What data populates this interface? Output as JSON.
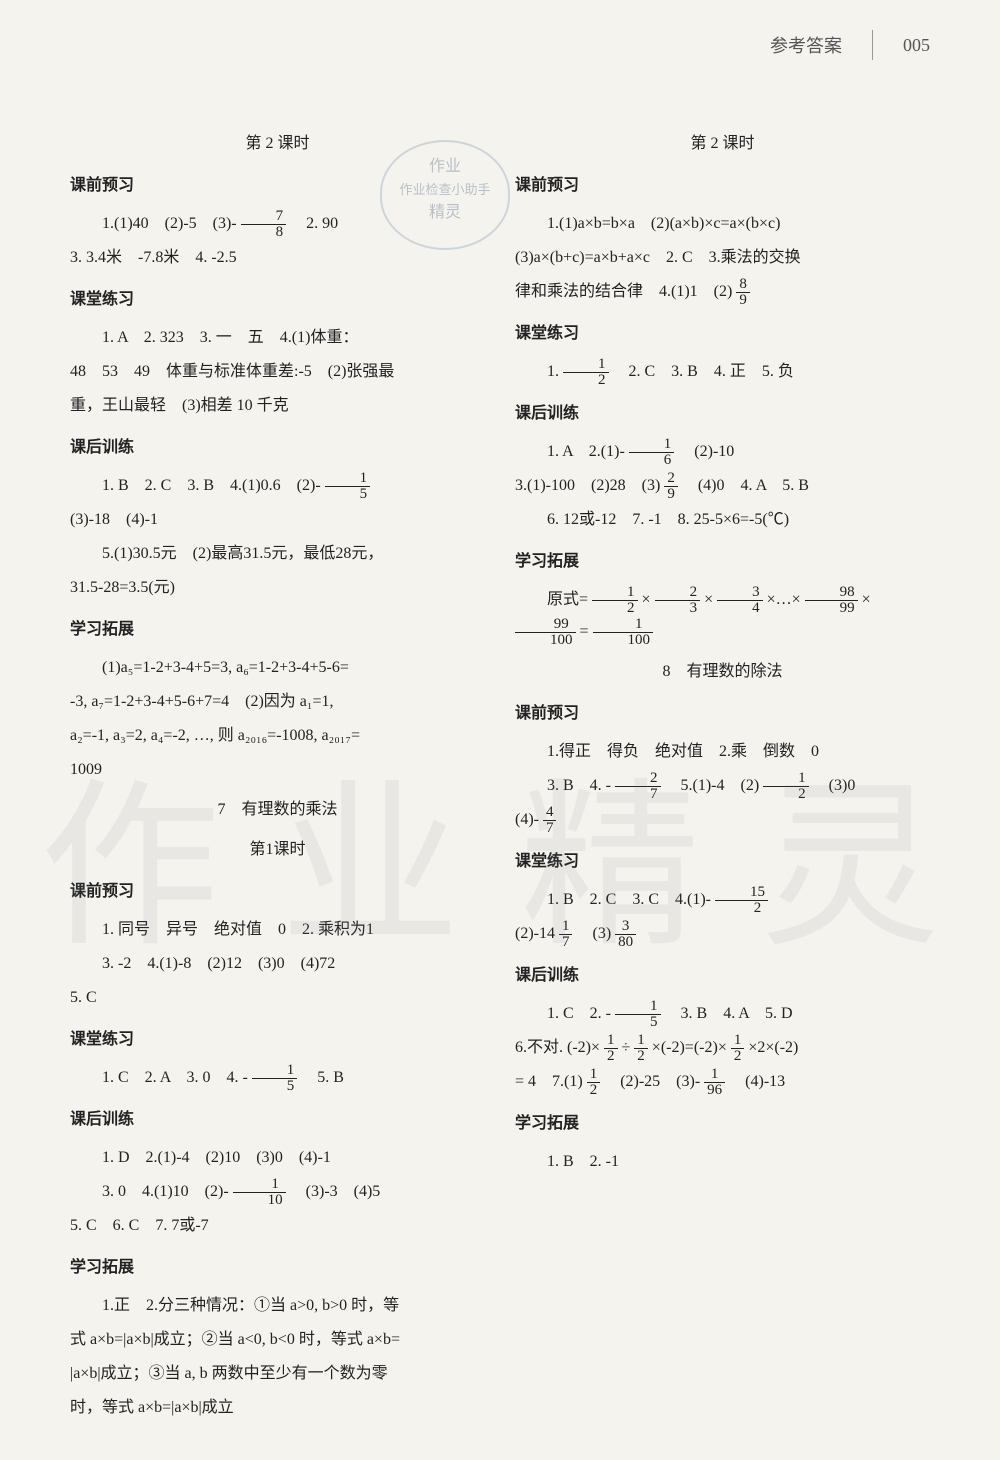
{
  "header": {
    "label": "参考答案",
    "page_num": "005"
  },
  "stamp": {
    "line1": "作业",
    "line2": "作业检查小助手",
    "line3": "精灵"
  },
  "watermark": {
    "left": "作业",
    "right": "精灵"
  },
  "left": {
    "title_lesson2": "第 2 课时",
    "s1_title": "课前预习",
    "s1_l1a": "1.(1)40　(2)-5　(3)-",
    "s1_frac1": {
      "num": "7",
      "den": "8"
    },
    "s1_l1b": "　2. 90",
    "s1_l2": "3. 3.4米　-7.8米　4. -2.5",
    "s2_title": "课堂练习",
    "s2_l1": "1. A　2. 323　3. 一　五　4.(1)体重：",
    "s2_l2": "48　53　49　体重与标准体重差:-5　(2)张强最",
    "s2_l3": "重，王山最轻　(3)相差 10 千克",
    "s3_title": "课后训练",
    "s3_l1a": "1. B　2. C　3. B　4.(1)0.6　(2)-",
    "s3_frac1": {
      "num": "1",
      "den": "5"
    },
    "s3_l2": "(3)-18　(4)-1",
    "s3_l3": "5.(1)30.5元　(2)最高31.5元，最低28元，",
    "s3_l4": "31.5-28=3.5(元)",
    "s4_title": "学习拓展",
    "s4_l1": "(1)a₅=1-2+3-4+5=3, a₆=1-2+3-4+5-6=",
    "s4_l2": "-3, a₇=1-2+3-4+5-6+7=4　(2)因为 a₁=1,",
    "s4_l3": "a₂=-1, a₃=2, a₄=-2, …, 则 a₂₀₁₆=-1008, a₂₀₁₇=",
    "s4_l4": "1009",
    "sec7_title": "7　有理数的乘法",
    "sec7_sub": "第1课时",
    "s5_title": "课前预习",
    "s5_l1": "1. 同号　异号　绝对值　0　2. 乘积为1",
    "s5_l2": "3. -2　4.(1)-8　(2)12　(3)0　(4)72",
    "s5_l3": "5. C",
    "s6_title": "课堂练习",
    "s6_l1a": "1. C　2. A　3. 0　4. -",
    "s6_frac1": {
      "num": "1",
      "den": "5"
    },
    "s6_l1b": "　5. B",
    "s7_title": "课后训练",
    "s7_l1": "1. D　2.(1)-4　(2)10　(3)0　(4)-1",
    "s7_l2a": "3. 0　4.(1)10　(2)-",
    "s7_frac1": {
      "num": "1",
      "den": "10"
    },
    "s7_l2b": "　(3)-3　(4)5",
    "s7_l3": "5. C　6. C　7. 7或-7",
    "s8_title": "学习拓展",
    "s8_l1": "1.正　2.分三种情况：①当 a>0, b>0 时，等",
    "s8_l2": "式 a×b=|a×b|成立；②当 a<0, b<0 时，等式 a×b=",
    "s8_l3": "|a×b|成立；③当 a, b 两数中至少有一个数为零",
    "s8_l4": "时，等式 a×b=|a×b|成立"
  },
  "right": {
    "title_lesson2": "第 2 课时",
    "s1_title": "课前预习",
    "s1_l1": "1.(1)a×b=b×a　(2)(a×b)×c=a×(b×c)",
    "s1_l2": "(3)a×(b+c)=a×b+a×c　2. C　3.乘法的交换",
    "s1_l3a": "律和乘法的结合律　4.(1)1　(2)",
    "s1_frac1": {
      "num": "8",
      "den": "9"
    },
    "s2_title": "课堂练习",
    "s2_l1a": "1.",
    "s2_frac1": {
      "num": "1",
      "den": "2"
    },
    "s2_l1b": "　2. C　3. B　4. 正　5. 负",
    "s3_title": "课后训练",
    "s3_l1a": "1. A　2.(1)-",
    "s3_frac1": {
      "num": "1",
      "den": "6"
    },
    "s3_l1b": "　(2)-10",
    "s3_l2a": "3.(1)-100　(2)28　(3)",
    "s3_frac2": {
      "num": "2",
      "den": "9"
    },
    "s3_l2b": "　(4)0　4. A　5. B",
    "s3_l3": "6. 12或-12　7. -1　8. 25-5×6=-5(℃)",
    "s4_title": "学习拓展",
    "s4_l1a": "原式=",
    "s4_frac_a": {
      "num": "1",
      "den": "2"
    },
    "s4_x": "×",
    "s4_frac_b": {
      "num": "2",
      "den": "3"
    },
    "s4_frac_c": {
      "num": "3",
      "den": "4"
    },
    "s4_dots": "×…×",
    "s4_frac_d": {
      "num": "98",
      "den": "99"
    },
    "s4_frac_e": {
      "num": "99",
      "den": "100"
    },
    "s4_eq": "=",
    "s4_frac_f": {
      "num": "1",
      "den": "100"
    },
    "sec8_title": "8　有理数的除法",
    "s5_title": "课前预习",
    "s5_l1": "1.得正　得负　绝对值　2.乘　倒数　0",
    "s5_l2a": "3. B　4. -",
    "s5_frac1": {
      "num": "2",
      "den": "7"
    },
    "s5_l2b": "　5.(1)-4　(2)",
    "s5_frac2": {
      "num": "1",
      "den": "2"
    },
    "s5_l2c": "　(3)0",
    "s5_l3a": "(4)-",
    "s5_frac3": {
      "num": "4",
      "den": "7"
    },
    "s6_title": "课堂练习",
    "s6_l1a": "1. B　2. C　3. C　4.(1)-",
    "s6_frac1": {
      "num": "15",
      "den": "2"
    },
    "s6_l2a": "(2)-14",
    "s6_frac2": {
      "num": "1",
      "den": "7"
    },
    "s6_l2b": "　(3)",
    "s6_frac3": {
      "num": "3",
      "den": "80"
    },
    "s7_title": "课后训练",
    "s7_l1a": "1. C　2. -",
    "s7_frac1": {
      "num": "1",
      "den": "5"
    },
    "s7_l1b": "　3. B　4. A　5. D",
    "s7_l2a": "6.不对. (-2)×",
    "s7_frac2": {
      "num": "1",
      "den": "2"
    },
    "s7_l2b": "÷",
    "s7_frac3": {
      "num": "1",
      "den": "2"
    },
    "s7_l2c": "×(-2)=(-2)×",
    "s7_frac4": {
      "num": "1",
      "den": "2"
    },
    "s7_l2d": "×2×(-2)",
    "s7_l3a": "= 4　7.(1)",
    "s7_frac5": {
      "num": "1",
      "den": "2"
    },
    "s7_l3b": "　(2)-25　(3)-",
    "s7_frac6": {
      "num": "1",
      "den": "96"
    },
    "s7_l3c": "　(4)-13",
    "s8_title": "学习拓展",
    "s8_l1": "1. B　2. -1"
  }
}
